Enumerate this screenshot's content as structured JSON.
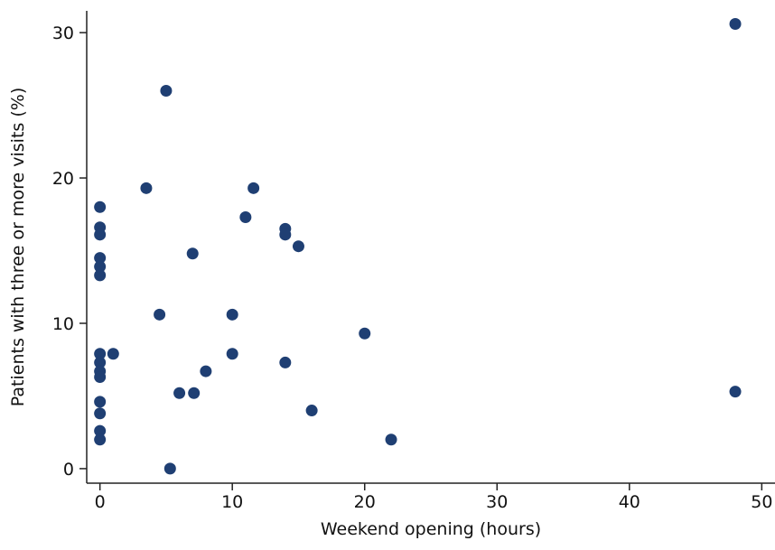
{
  "chart_data": {
    "type": "scatter",
    "title": "",
    "xlabel": "Weekend opening (hours)",
    "ylabel": "Patients with three or more visits (%)",
    "xlim": [
      -1,
      51
    ],
    "ylim": [
      -1,
      31.5
    ],
    "xticks": [
      0,
      10,
      20,
      30,
      40,
      50
    ],
    "yticks": [
      0,
      10,
      20,
      30
    ],
    "grid": false,
    "marker_color": "#1f3f73",
    "series": [
      {
        "x": [
          0,
          0,
          0,
          0,
          0,
          0,
          0,
          0,
          0,
          0,
          0,
          0,
          0,
          0,
          1,
          3.5,
          4.5,
          5,
          5.3,
          6,
          7,
          7.1,
          8,
          10,
          10,
          11,
          11.6,
          14,
          14,
          14,
          15,
          16,
          20,
          22,
          48,
          48
        ],
        "y": [
          18,
          16.6,
          16.1,
          14.5,
          13.9,
          13.3,
          7.9,
          7.3,
          6.7,
          6.3,
          4.6,
          3.8,
          2.6,
          2.0,
          7.9,
          19.3,
          10.6,
          26.0,
          0.0,
          5.2,
          14.8,
          5.2,
          6.7,
          10.6,
          7.9,
          17.3,
          19.3,
          16.5,
          16.1,
          7.3,
          15.3,
          4.0,
          9.3,
          2.0,
          30.6,
          5.3
        ]
      }
    ]
  }
}
